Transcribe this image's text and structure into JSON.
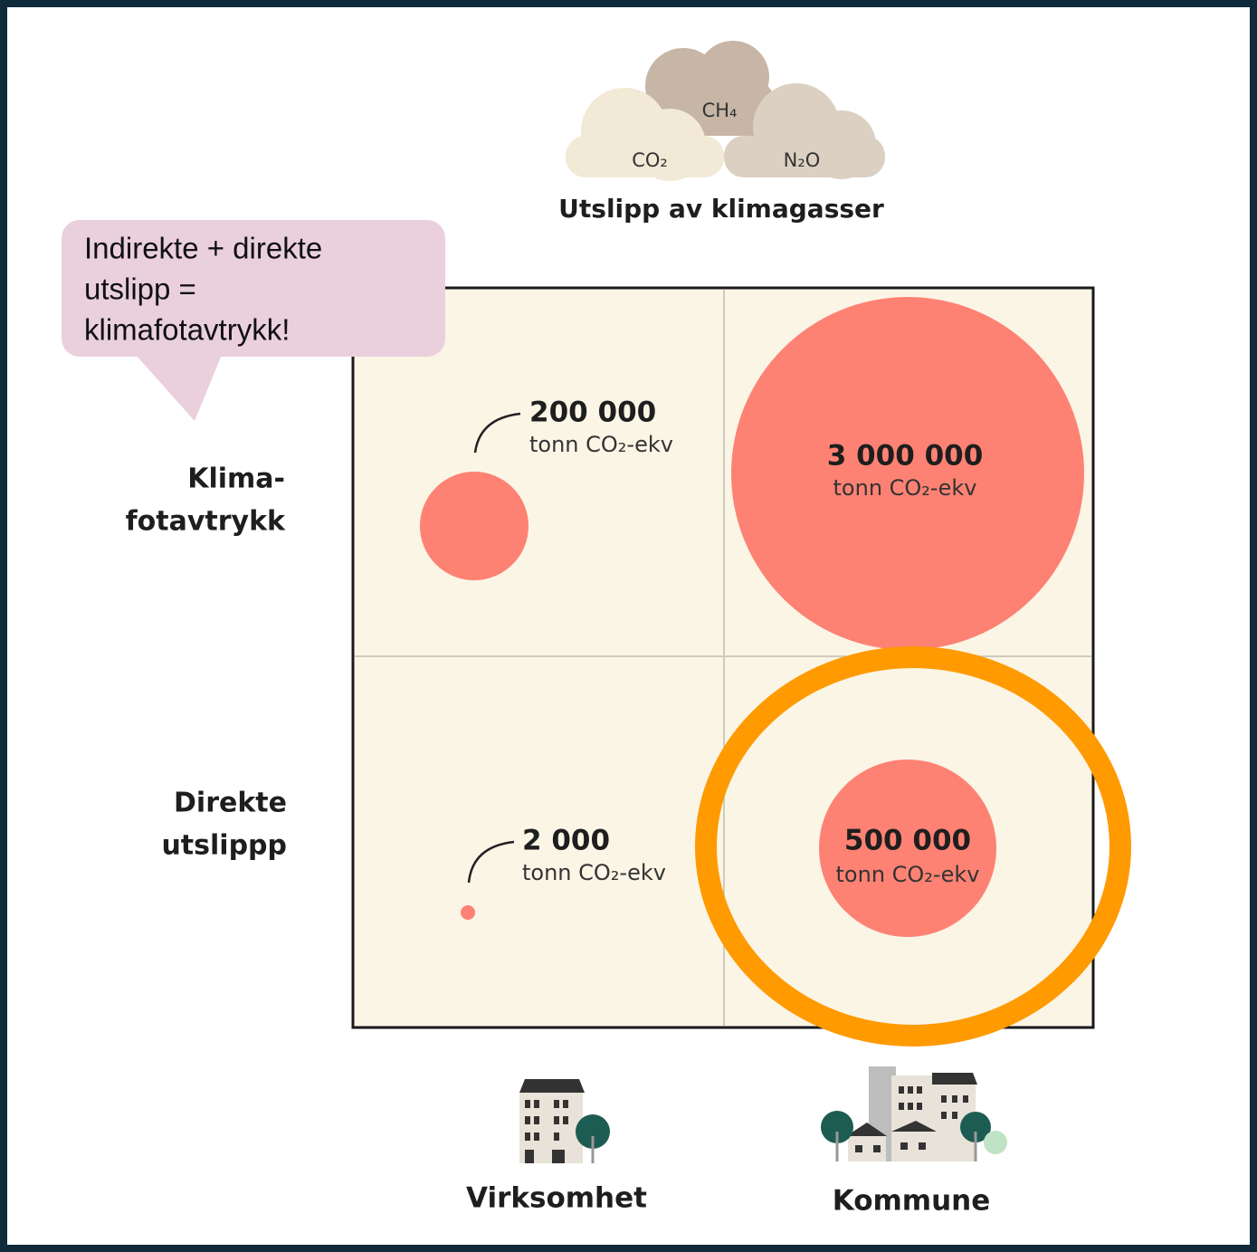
{
  "header": {
    "title": "Utslipp av klimagasser",
    "gases": [
      "CO₂",
      "CH₄",
      "N₂O"
    ]
  },
  "callout": {
    "lines": [
      "Indirekte + direkte",
      "utslipp =",
      "klimafotavtrykk!"
    ]
  },
  "rows": [
    {
      "lines": [
        "Klima-",
        "fotavtrykk"
      ]
    },
    {
      "lines": [
        "Direkte",
        "utslippp"
      ]
    }
  ],
  "columns": [
    "Virksomhet",
    "Kommune"
  ],
  "cells": [
    [
      {
        "value": "200 000",
        "unit": "tonn CO₂-ekv"
      },
      {
        "value": "3 000 000",
        "unit": "tonn CO₂-ekv"
      }
    ],
    [
      {
        "value": "2 000",
        "unit": "tonn CO₂-ekv"
      },
      {
        "value": "500 000",
        "unit": "tonn CO₂-ekv"
      }
    ]
  ]
}
